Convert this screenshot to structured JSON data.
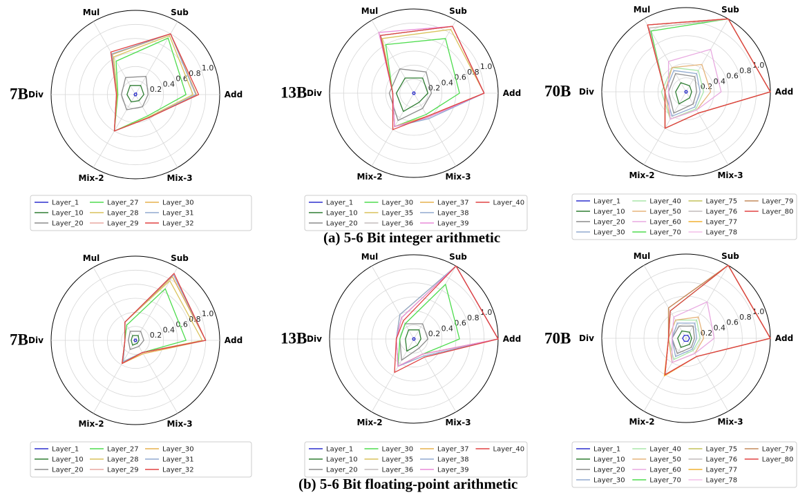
{
  "captions": {
    "a": "(a) 5-6 Bit integer arithmetic",
    "b": "(b) 5-6 Bit floating-point arithmetic"
  },
  "chart_data": [
    {
      "type": "radar",
      "panel": "a-7B",
      "model_label": "7B",
      "axes": [
        "Add",
        "Sub",
        "Mul",
        "Div",
        "Mix-2",
        "Mix-3"
      ],
      "rticks": [
        "0.2",
        "0.4",
        "0.6",
        "0.8",
        "1.0"
      ],
      "rlim": [
        0,
        1.2
      ],
      "grid": true,
      "legend_placement": "bottom",
      "series": [
        {
          "name": "Layer_1",
          "color": "#2c2fce",
          "values": [
            0.02,
            0.03,
            0.02,
            0.02,
            0.02,
            0.02
          ]
        },
        {
          "name": "Layer_10",
          "color": "#2e7d32",
          "values": [
            0.12,
            0.15,
            0.15,
            0.12,
            0.12,
            0.1
          ]
        },
        {
          "name": "Layer_20",
          "color": "#8c8c8c",
          "values": [
            0.18,
            0.3,
            0.28,
            0.2,
            0.25,
            0.2
          ]
        },
        {
          "name": "Layer_27",
          "color": "#4ddc4d",
          "values": [
            0.72,
            0.93,
            0.55,
            0.25,
            0.6,
            0.35
          ]
        },
        {
          "name": "Layer_28",
          "color": "#d9c25a",
          "values": [
            0.82,
            0.97,
            0.62,
            0.26,
            0.6,
            0.37
          ]
        },
        {
          "name": "Layer_29",
          "color": "#e8a7a0",
          "values": [
            0.86,
            1.0,
            0.66,
            0.27,
            0.6,
            0.38
          ]
        },
        {
          "name": "Layer_30",
          "color": "#e5b04c",
          "values": [
            0.87,
            1.0,
            0.66,
            0.27,
            0.6,
            0.38
          ]
        },
        {
          "name": "Layer_31",
          "color": "#90a9cf",
          "values": [
            0.86,
            1.0,
            0.67,
            0.27,
            0.6,
            0.38
          ]
        },
        {
          "name": "Layer_32",
          "color": "#e04040",
          "values": [
            0.9,
            1.0,
            0.7,
            0.27,
            0.6,
            0.38
          ]
        }
      ]
    },
    {
      "type": "radar",
      "panel": "a-13B",
      "model_label": "13B",
      "axes": [
        "Add",
        "Sub",
        "Mul",
        "Div",
        "Mix-2",
        "Mix-3"
      ],
      "rticks": [
        "0.2",
        "0.4",
        "0.6",
        "0.8",
        "1.0"
      ],
      "rlim": [
        0,
        1.2
      ],
      "grid": true,
      "legend_placement": "bottom",
      "series": [
        {
          "name": "Layer_1",
          "color": "#2c2fce",
          "values": [
            0.02,
            0.02,
            0.02,
            0.02,
            0.02,
            0.02
          ]
        },
        {
          "name": "Layer_10",
          "color": "#2e7d32",
          "values": [
            0.2,
            0.25,
            0.25,
            0.25,
            0.3,
            0.15
          ]
        },
        {
          "name": "Layer_20",
          "color": "#8c8c8c",
          "values": [
            0.25,
            0.35,
            0.4,
            0.35,
            0.45,
            0.25
          ]
        },
        {
          "name": "Layer_30",
          "color": "#4ddc4d",
          "values": [
            0.65,
            0.9,
            0.8,
            0.3,
            0.55,
            0.35
          ]
        },
        {
          "name": "Layer_35",
          "color": "#d9c25a",
          "values": [
            1.0,
            1.05,
            0.9,
            0.3,
            0.55,
            0.38
          ]
        },
        {
          "name": "Layer_36",
          "color": "#c2bcbc",
          "values": [
            1.0,
            1.1,
            0.95,
            0.3,
            0.55,
            0.38
          ]
        },
        {
          "name": "Layer_37",
          "color": "#e5b04c",
          "values": [
            1.0,
            1.1,
            0.95,
            0.3,
            0.55,
            0.38
          ]
        },
        {
          "name": "Layer_38",
          "color": "#90a9cf",
          "values": [
            1.0,
            1.1,
            0.95,
            0.3,
            0.55,
            0.42
          ]
        },
        {
          "name": "Layer_39",
          "color": "#e98ad8",
          "values": [
            1.0,
            1.1,
            1.0,
            0.3,
            0.55,
            0.4
          ]
        },
        {
          "name": "Layer_40",
          "color": "#e04040",
          "values": [
            1.0,
            1.1,
            0.95,
            0.3,
            0.6,
            0.38
          ]
        }
      ]
    },
    {
      "type": "radar",
      "panel": "a-70B",
      "model_label": "70B",
      "axes": [
        "Add",
        "Sub",
        "Mul",
        "Div",
        "Mix-2",
        "Mix-3"
      ],
      "rticks": [
        "0.2",
        "0.4",
        "0.6",
        "0.8",
        "1.0"
      ],
      "rlim": [
        0,
        1.2
      ],
      "grid": true,
      "legend_placement": "bottom",
      "series": [
        {
          "name": "Layer_1",
          "color": "#2c2fce",
          "values": [
            0.02,
            0.02,
            0.02,
            0.02,
            0.02,
            0.02
          ]
        },
        {
          "name": "Layer_10",
          "color": "#2e7d32",
          "values": [
            0.08,
            0.1,
            0.15,
            0.15,
            0.2,
            0.1
          ]
        },
        {
          "name": "Layer_20",
          "color": "#8c8c8c",
          "values": [
            0.15,
            0.25,
            0.3,
            0.25,
            0.35,
            0.2
          ]
        },
        {
          "name": "Layer_30",
          "color": "#90a9cf",
          "values": [
            0.2,
            0.3,
            0.35,
            0.3,
            0.4,
            0.25
          ]
        },
        {
          "name": "Layer_40",
          "color": "#a8e6a8",
          "values": [
            0.25,
            0.35,
            0.4,
            0.35,
            0.45,
            0.28
          ]
        },
        {
          "name": "Layer_50",
          "color": "#e5b47a",
          "values": [
            0.35,
            0.45,
            0.4,
            0.3,
            0.45,
            0.3
          ]
        },
        {
          "name": "Layer_60",
          "color": "#e8a8e0",
          "values": [
            0.5,
            0.7,
            0.5,
            0.25,
            0.45,
            0.3
          ]
        },
        {
          "name": "Layer_70",
          "color": "#4ddc4d",
          "values": [
            1.2,
            1.2,
            1.0,
            0.3,
            0.6,
            0.35
          ]
        },
        {
          "name": "Layer_75",
          "color": "#c4c25a",
          "values": [
            1.2,
            1.2,
            1.05,
            0.3,
            0.6,
            0.35
          ]
        },
        {
          "name": "Layer_76",
          "color": "#c2bcbc",
          "values": [
            1.2,
            1.2,
            1.05,
            0.3,
            0.6,
            0.35
          ]
        },
        {
          "name": "Layer_77",
          "color": "#f0b030",
          "values": [
            1.2,
            1.2,
            1.1,
            0.3,
            0.6,
            0.35
          ]
        },
        {
          "name": "Layer_78",
          "color": "#f4bde8",
          "values": [
            1.2,
            1.2,
            1.1,
            0.3,
            0.6,
            0.35
          ]
        },
        {
          "name": "Layer_79",
          "color": "#c48a5a",
          "values": [
            1.2,
            1.2,
            1.1,
            0.3,
            0.6,
            0.35
          ]
        },
        {
          "name": "Layer_80",
          "color": "#e04040",
          "values": [
            1.2,
            1.2,
            1.1,
            0.3,
            0.6,
            0.35
          ]
        }
      ]
    },
    {
      "type": "radar",
      "panel": "b-7B",
      "model_label": "7B",
      "axes": [
        "Add",
        "Sub",
        "Mul",
        "Div",
        "Mix-2",
        "Mix-3"
      ],
      "rticks": [
        "0.2",
        "0.4",
        "0.6",
        "0.8",
        "1.0"
      ],
      "rlim": [
        0,
        1.2
      ],
      "grid": true,
      "legend_placement": "bottom",
      "series": [
        {
          "name": "Layer_1",
          "color": "#2c2fce",
          "values": [
            0.02,
            0.02,
            0.02,
            0.02,
            0.02,
            0.02
          ]
        },
        {
          "name": "Layer_10",
          "color": "#2e7d32",
          "values": [
            0.05,
            0.08,
            0.08,
            0.06,
            0.08,
            0.05
          ]
        },
        {
          "name": "Layer_20",
          "color": "#8c8c8c",
          "values": [
            0.12,
            0.15,
            0.15,
            0.1,
            0.15,
            0.1
          ]
        },
        {
          "name": "Layer_27",
          "color": "#4ddc4d",
          "values": [
            0.72,
            0.85,
            0.25,
            0.15,
            0.35,
            0.2
          ]
        },
        {
          "name": "Layer_28",
          "color": "#d9c25a",
          "values": [
            0.95,
            0.98,
            0.3,
            0.15,
            0.35,
            0.2
          ]
        },
        {
          "name": "Layer_29",
          "color": "#e8a7a0",
          "values": [
            1.0,
            1.05,
            0.3,
            0.15,
            0.38,
            0.2
          ]
        },
        {
          "name": "Layer_30",
          "color": "#e5b04c",
          "values": [
            1.0,
            1.05,
            0.3,
            0.15,
            0.38,
            0.22
          ]
        },
        {
          "name": "Layer_31",
          "color": "#90a9cf",
          "values": [
            1.0,
            1.08,
            0.3,
            0.15,
            0.35,
            0.2
          ]
        },
        {
          "name": "Layer_32",
          "color": "#e04040",
          "values": [
            1.0,
            1.1,
            0.3,
            0.15,
            0.38,
            0.2
          ]
        }
      ]
    },
    {
      "type": "radar",
      "panel": "b-13B",
      "model_label": "13B",
      "axes": [
        "Add",
        "Sub",
        "Mul",
        "Div",
        "Mix-2",
        "Mix-3"
      ],
      "rticks": [
        "0.2",
        "0.4",
        "0.6",
        "0.8",
        "1.0"
      ],
      "rlim": [
        0,
        1.2
      ],
      "grid": true,
      "legend_placement": "bottom",
      "series": [
        {
          "name": "Layer_1",
          "color": "#2c2fce",
          "values": [
            0.02,
            0.02,
            0.02,
            0.02,
            0.02,
            0.02
          ]
        },
        {
          "name": "Layer_10",
          "color": "#2e7d32",
          "values": [
            0.1,
            0.15,
            0.15,
            0.12,
            0.2,
            0.1
          ]
        },
        {
          "name": "Layer_20",
          "color": "#8c8c8c",
          "values": [
            0.2,
            0.25,
            0.25,
            0.2,
            0.35,
            0.15
          ]
        },
        {
          "name": "Layer_30",
          "color": "#4ddc4d",
          "values": [
            0.65,
            0.9,
            0.25,
            0.2,
            0.45,
            0.25
          ]
        },
        {
          "name": "Layer_35",
          "color": "#d9c25a",
          "values": [
            1.2,
            1.2,
            0.35,
            0.25,
            0.45,
            0.25
          ]
        },
        {
          "name": "Layer_36",
          "color": "#c2bcbc",
          "values": [
            1.2,
            1.2,
            0.35,
            0.25,
            0.45,
            0.25
          ]
        },
        {
          "name": "Layer_37",
          "color": "#e5b04c",
          "values": [
            1.2,
            1.2,
            0.4,
            0.25,
            0.45,
            0.25
          ]
        },
        {
          "name": "Layer_38",
          "color": "#90a9cf",
          "values": [
            1.2,
            1.2,
            0.4,
            0.25,
            0.45,
            0.28
          ]
        },
        {
          "name": "Layer_39",
          "color": "#e98ad8",
          "values": [
            1.2,
            1.2,
            0.35,
            0.25,
            0.45,
            0.25
          ]
        },
        {
          "name": "Layer_40",
          "color": "#e04040",
          "values": [
            1.2,
            1.2,
            0.3,
            0.25,
            0.55,
            0.3
          ]
        }
      ]
    },
    {
      "type": "radar",
      "panel": "b-70B",
      "model_label": "70B",
      "axes": [
        "Add",
        "Sub",
        "Mul",
        "Div",
        "Mix-2",
        "Mix-3"
      ],
      "rticks": [
        "0.2",
        "0.4",
        "0.6",
        "0.8",
        "1.0"
      ],
      "rlim": [
        0,
        1.2
      ],
      "grid": true,
      "legend_placement": "bottom",
      "series": [
        {
          "name": "Layer_1",
          "color": "#2c2fce",
          "values": [
            0.05,
            0.05,
            0.05,
            0.05,
            0.05,
            0.05
          ]
        },
        {
          "name": "Layer_10",
          "color": "#2e7d32",
          "values": [
            0.08,
            0.1,
            0.12,
            0.12,
            0.15,
            0.1
          ]
        },
        {
          "name": "Layer_20",
          "color": "#8c8c8c",
          "values": [
            0.12,
            0.2,
            0.2,
            0.2,
            0.25,
            0.15
          ]
        },
        {
          "name": "Layer_30",
          "color": "#90a9cf",
          "values": [
            0.15,
            0.25,
            0.25,
            0.2,
            0.3,
            0.18
          ]
        },
        {
          "name": "Layer_40",
          "color": "#a8e6a8",
          "values": [
            0.2,
            0.3,
            0.3,
            0.25,
            0.35,
            0.2
          ]
        },
        {
          "name": "Layer_50",
          "color": "#e5b47a",
          "values": [
            0.25,
            0.35,
            0.3,
            0.25,
            0.4,
            0.25
          ]
        },
        {
          "name": "Layer_60",
          "color": "#e8a8e0",
          "values": [
            0.4,
            0.6,
            0.35,
            0.2,
            0.4,
            0.25
          ]
        },
        {
          "name": "Layer_70",
          "color": "#4ddc4d",
          "values": [
            1.2,
            1.2,
            0.45,
            0.25,
            0.6,
            0.3
          ]
        },
        {
          "name": "Layer_75",
          "color": "#c4c25a",
          "values": [
            1.2,
            1.2,
            0.5,
            0.25,
            0.6,
            0.3
          ]
        },
        {
          "name": "Layer_76",
          "color": "#c2bcbc",
          "values": [
            1.2,
            1.2,
            0.5,
            0.25,
            0.6,
            0.3
          ]
        },
        {
          "name": "Layer_77",
          "color": "#f0b030",
          "values": [
            1.2,
            1.2,
            0.5,
            0.25,
            0.62,
            0.3
          ]
        },
        {
          "name": "Layer_78",
          "color": "#f4bde8",
          "values": [
            1.2,
            1.2,
            0.5,
            0.25,
            0.6,
            0.3
          ]
        },
        {
          "name": "Layer_79",
          "color": "#c48a5a",
          "values": [
            1.2,
            1.2,
            0.5,
            0.25,
            0.6,
            0.3
          ]
        },
        {
          "name": "Layer_80",
          "color": "#e04040",
          "values": [
            1.2,
            1.2,
            0.45,
            0.25,
            0.6,
            0.3
          ]
        }
      ]
    }
  ]
}
